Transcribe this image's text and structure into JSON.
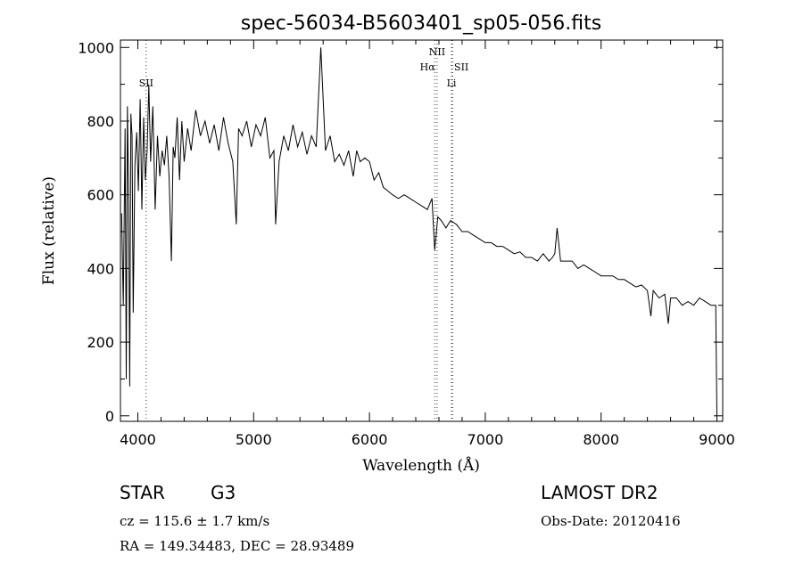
{
  "chart_data": {
    "type": "line",
    "title": "spec-56034-B5603401_sp05-056.fits",
    "xlabel": "Wavelength (Å)",
    "ylabel": "Flux (relative)",
    "xlim": [
      3850,
      9050
    ],
    "ylim": [
      -15,
      1020
    ],
    "xticks": [
      4000,
      5000,
      6000,
      7000,
      8000,
      9000
    ],
    "yticks": [
      0,
      200,
      400,
      600,
      800,
      1000
    ],
    "grid": false,
    "legend": "none",
    "series": [
      {
        "color": "#000000",
        "x": [
          3860,
          3875,
          3890,
          3900,
          3910,
          3920,
          3930,
          3940,
          3950,
          3960,
          3975,
          3990,
          4005,
          4020,
          4035,
          4050,
          4065,
          4080,
          4095,
          4110,
          4130,
          4150,
          4170,
          4190,
          4210,
          4230,
          4250,
          4270,
          4290,
          4305,
          4320,
          4340,
          4360,
          4380,
          4400,
          4430,
          4460,
          4500,
          4540,
          4580,
          4620,
          4660,
          4700,
          4740,
          4780,
          4820,
          4850,
          4870,
          4900,
          4940,
          4980,
          5020,
          5060,
          5100,
          5140,
          5175,
          5190,
          5220,
          5260,
          5300,
          5340,
          5380,
          5420,
          5460,
          5500,
          5540,
          5580,
          5620,
          5660,
          5700,
          5740,
          5780,
          5820,
          5860,
          5890,
          5920,
          5960,
          6000,
          6040,
          6080,
          6120,
          6160,
          6200,
          6250,
          6300,
          6350,
          6400,
          6450,
          6500,
          6540,
          6563,
          6590,
          6620,
          6660,
          6700,
          6750,
          6800,
          6850,
          6900,
          6950,
          7000,
          7050,
          7100,
          7150,
          7200,
          7250,
          7300,
          7350,
          7400,
          7450,
          7500,
          7550,
          7580,
          7600,
          7620,
          7650,
          7700,
          7750,
          7800,
          7850,
          7900,
          7950,
          8000,
          8050,
          8100,
          8150,
          8200,
          8250,
          8300,
          8350,
          8400,
          8430,
          8450,
          8500,
          8550,
          8580,
          8600,
          8650,
          8700,
          8750,
          8800,
          8850,
          8900,
          8950,
          8990,
          8995,
          9000
        ],
        "values": [
          550,
          300,
          780,
          100,
          840,
          620,
          80,
          820,
          760,
          280,
          680,
          770,
          610,
          860,
          560,
          810,
          640,
          720,
          900,
          690,
          840,
          560,
          760,
          650,
          720,
          680,
          760,
          650,
          420,
          730,
          700,
          810,
          640,
          800,
          690,
          780,
          720,
          830,
          760,
          800,
          740,
          790,
          720,
          810,
          740,
          690,
          520,
          780,
          760,
          800,
          730,
          790,
          760,
          810,
          700,
          720,
          520,
          690,
          760,
          720,
          790,
          730,
          770,
          710,
          760,
          730,
          1000,
          720,
          760,
          690,
          710,
          680,
          720,
          650,
          720,
          690,
          700,
          690,
          640,
          660,
          620,
          610,
          600,
          590,
          600,
          590,
          580,
          570,
          560,
          590,
          450,
          540,
          530,
          510,
          530,
          520,
          500,
          500,
          490,
          480,
          470,
          470,
          460,
          460,
          450,
          440,
          445,
          430,
          430,
          420,
          440,
          420,
          430,
          440,
          510,
          420,
          420,
          420,
          400,
          410,
          400,
          390,
          380,
          380,
          380,
          370,
          370,
          360,
          350,
          355,
          340,
          270,
          340,
          320,
          330,
          250,
          320,
          320,
          300,
          310,
          300,
          320,
          310,
          300,
          300,
          140,
          0
        ]
      }
    ],
    "annotations": [
      {
        "label": "SII",
        "x": 4072
      },
      {
        "label": "NII",
        "x": 6584
      },
      {
        "label": "Hα",
        "x": 6563
      },
      {
        "label": "SII",
        "x": 6717
      },
      {
        "label": "Li",
        "x": 6708
      }
    ]
  },
  "info": {
    "object_type": "STAR",
    "subclass": "G3",
    "survey": "LAMOST DR2",
    "cz": "cz = 115.6 ± 1.7 km/s",
    "obs_date": "Obs-Date: 20120416",
    "coords": "RA = 149.34483, DEC =  28.93489"
  }
}
